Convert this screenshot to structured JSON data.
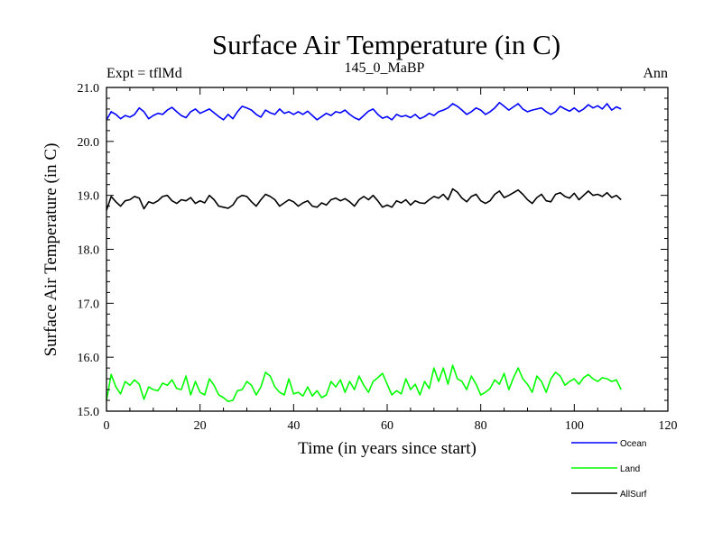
{
  "chart_data": {
    "type": "line",
    "title": "Surface Air Temperature (in C)",
    "subtitle_left": "Expt = tflMd",
    "subtitle_center": "145_0_MaBP",
    "subtitle_right": "Ann",
    "xlabel": "Time (in years since start)",
    "ylabel": "Surface Air Temperature (in C)",
    "xlim": [
      0,
      120
    ],
    "ylim": [
      15.0,
      21.0
    ],
    "xticks": [
      0,
      20,
      40,
      60,
      80,
      100,
      120
    ],
    "xtick_labels": [
      "0",
      "20",
      "40",
      "60",
      "80",
      "100",
      "120"
    ],
    "yticks": [
      15.0,
      16.0,
      17.0,
      18.0,
      19.0,
      20.0,
      21.0
    ],
    "ytick_labels": [
      "15.0",
      "16.0",
      "17.0",
      "18.0",
      "19.0",
      "20.0",
      "21.0"
    ],
    "legend_position": "bottom-right, outside plot",
    "series": [
      {
        "name": "Ocean",
        "color": "#0000ff",
        "x": [
          0,
          1,
          2,
          3,
          4,
          5,
          6,
          7,
          8,
          9,
          10,
          11,
          12,
          13,
          14,
          15,
          16,
          17,
          18,
          19,
          20,
          21,
          22,
          23,
          24,
          25,
          26,
          27,
          28,
          29,
          30,
          31,
          32,
          33,
          34,
          35,
          36,
          37,
          38,
          39,
          40,
          41,
          42,
          43,
          44,
          45,
          46,
          47,
          48,
          49,
          50,
          51,
          52,
          53,
          54,
          55,
          56,
          57,
          58,
          59,
          60,
          61,
          62,
          63,
          64,
          65,
          66,
          67,
          68,
          69,
          70,
          71,
          72,
          73,
          74,
          75,
          76,
          77,
          78,
          79,
          80,
          81,
          82,
          83,
          84,
          85,
          86,
          87,
          88,
          89,
          90,
          91,
          92,
          93,
          94,
          95,
          96,
          97,
          98,
          99,
          100,
          101,
          102,
          103,
          104,
          105,
          106,
          107,
          108,
          109,
          110
        ],
        "values": [
          20.4,
          20.55,
          20.5,
          20.42,
          20.48,
          20.45,
          20.5,
          20.62,
          20.55,
          20.42,
          20.48,
          20.52,
          20.5,
          20.58,
          20.63,
          20.55,
          20.48,
          20.44,
          20.55,
          20.6,
          20.52,
          20.56,
          20.6,
          20.53,
          20.46,
          20.4,
          20.5,
          20.42,
          20.55,
          20.65,
          20.62,
          20.58,
          20.5,
          20.45,
          20.58,
          20.53,
          20.5,
          20.6,
          20.52,
          20.55,
          20.5,
          20.55,
          20.5,
          20.56,
          20.48,
          20.4,
          20.46,
          20.52,
          20.48,
          20.55,
          20.53,
          20.58,
          20.5,
          20.44,
          20.4,
          20.48,
          20.56,
          20.6,
          20.5,
          20.43,
          20.46,
          20.4,
          20.5,
          20.46,
          20.48,
          20.44,
          20.5,
          20.42,
          20.46,
          20.52,
          20.48,
          20.55,
          20.58,
          20.62,
          20.7,
          20.65,
          20.58,
          20.5,
          20.55,
          20.62,
          20.58,
          20.5,
          20.55,
          20.62,
          20.72,
          20.65,
          20.58,
          20.64,
          20.7,
          20.6,
          20.55,
          20.58,
          20.6,
          20.62,
          20.55,
          20.5,
          20.55,
          20.65,
          20.6,
          20.56,
          20.62,
          20.55,
          20.6,
          20.68,
          20.62,
          20.66,
          20.6,
          20.7,
          20.58,
          20.64,
          20.6
        ]
      },
      {
        "name": "Land",
        "color": "#00ff00",
        "x": [
          0,
          1,
          2,
          3,
          4,
          5,
          6,
          7,
          8,
          9,
          10,
          11,
          12,
          13,
          14,
          15,
          16,
          17,
          18,
          19,
          20,
          21,
          22,
          23,
          24,
          25,
          26,
          27,
          28,
          29,
          30,
          31,
          32,
          33,
          34,
          35,
          36,
          37,
          38,
          39,
          40,
          41,
          42,
          43,
          44,
          45,
          46,
          47,
          48,
          49,
          50,
          51,
          52,
          53,
          54,
          55,
          56,
          57,
          58,
          59,
          60,
          61,
          62,
          63,
          64,
          65,
          66,
          67,
          68,
          69,
          70,
          71,
          72,
          73,
          74,
          75,
          76,
          77,
          78,
          79,
          80,
          81,
          82,
          83,
          84,
          85,
          86,
          87,
          88,
          89,
          90,
          91,
          92,
          93,
          94,
          95,
          96,
          97,
          98,
          99,
          100,
          101,
          102,
          103,
          104,
          105,
          106,
          107,
          108,
          109,
          110
        ],
        "values": [
          15.2,
          15.68,
          15.45,
          15.32,
          15.55,
          15.48,
          15.58,
          15.5,
          15.22,
          15.45,
          15.4,
          15.38,
          15.52,
          15.48,
          15.58,
          15.42,
          15.4,
          15.65,
          15.3,
          15.55,
          15.35,
          15.3,
          15.6,
          15.48,
          15.3,
          15.25,
          15.18,
          15.2,
          15.38,
          15.4,
          15.55,
          15.48,
          15.3,
          15.45,
          15.72,
          15.65,
          15.45,
          15.35,
          15.3,
          15.6,
          15.32,
          15.35,
          15.28,
          15.45,
          15.28,
          15.38,
          15.25,
          15.3,
          15.55,
          15.45,
          15.58,
          15.35,
          15.55,
          15.4,
          15.65,
          15.48,
          15.35,
          15.55,
          15.62,
          15.7,
          15.5,
          15.3,
          15.38,
          15.32,
          15.6,
          15.4,
          15.5,
          15.3,
          15.55,
          15.42,
          15.8,
          15.55,
          15.8,
          15.5,
          15.85,
          15.6,
          15.55,
          15.4,
          15.65,
          15.5,
          15.3,
          15.35,
          15.42,
          15.58,
          15.5,
          15.7,
          15.4,
          15.62,
          15.8,
          15.6,
          15.5,
          15.35,
          15.65,
          15.55,
          15.35,
          15.6,
          15.72,
          15.65,
          15.48,
          15.55,
          15.6,
          15.5,
          15.62,
          15.68,
          15.6,
          15.55,
          15.62,
          15.6,
          15.55,
          15.58,
          15.4
        ]
      },
      {
        "name": "AllSurf",
        "color": "#000000",
        "x": [
          0,
          1,
          2,
          3,
          4,
          5,
          6,
          7,
          8,
          9,
          10,
          11,
          12,
          13,
          14,
          15,
          16,
          17,
          18,
          19,
          20,
          21,
          22,
          23,
          24,
          25,
          26,
          27,
          28,
          29,
          30,
          31,
          32,
          33,
          34,
          35,
          36,
          37,
          38,
          39,
          40,
          41,
          42,
          43,
          44,
          45,
          46,
          47,
          48,
          49,
          50,
          51,
          52,
          53,
          54,
          55,
          56,
          57,
          58,
          59,
          60,
          61,
          62,
          63,
          64,
          65,
          66,
          67,
          68,
          69,
          70,
          71,
          72,
          73,
          74,
          75,
          76,
          77,
          78,
          79,
          80,
          81,
          82,
          83,
          84,
          85,
          86,
          87,
          88,
          89,
          90,
          91,
          92,
          93,
          94,
          95,
          96,
          97,
          98,
          99,
          100,
          101,
          102,
          103,
          104,
          105,
          106,
          107,
          108,
          109,
          110
        ],
        "values": [
          18.72,
          18.98,
          18.88,
          18.8,
          18.9,
          18.92,
          18.98,
          18.95,
          18.75,
          18.88,
          18.85,
          18.9,
          18.98,
          19.0,
          18.9,
          18.85,
          18.92,
          18.9,
          18.96,
          18.85,
          18.9,
          18.86,
          19.0,
          18.92,
          18.8,
          18.78,
          18.76,
          18.82,
          18.95,
          19.0,
          18.98,
          18.88,
          18.8,
          18.92,
          19.02,
          18.98,
          18.92,
          18.8,
          18.86,
          18.92,
          18.88,
          18.8,
          18.86,
          18.9,
          18.8,
          18.78,
          18.86,
          18.82,
          18.92,
          18.95,
          18.9,
          18.94,
          18.88,
          18.8,
          18.92,
          18.98,
          18.92,
          19.0,
          18.9,
          18.78,
          18.82,
          18.78,
          18.9,
          18.86,
          18.92,
          18.82,
          18.9,
          18.86,
          18.85,
          18.92,
          18.98,
          18.95,
          19.02,
          18.92,
          19.12,
          19.06,
          18.95,
          18.88,
          18.98,
          19.02,
          18.9,
          18.85,
          18.9,
          19.02,
          19.08,
          18.96,
          19.0,
          19.05,
          19.1,
          19.02,
          18.92,
          18.85,
          18.96,
          19.02,
          18.9,
          18.88,
          19.02,
          19.05,
          18.98,
          18.95,
          19.04,
          18.92,
          19.0,
          19.08,
          19.0,
          19.02,
          18.98,
          19.05,
          18.96,
          19.0,
          18.92
        ]
      }
    ]
  }
}
